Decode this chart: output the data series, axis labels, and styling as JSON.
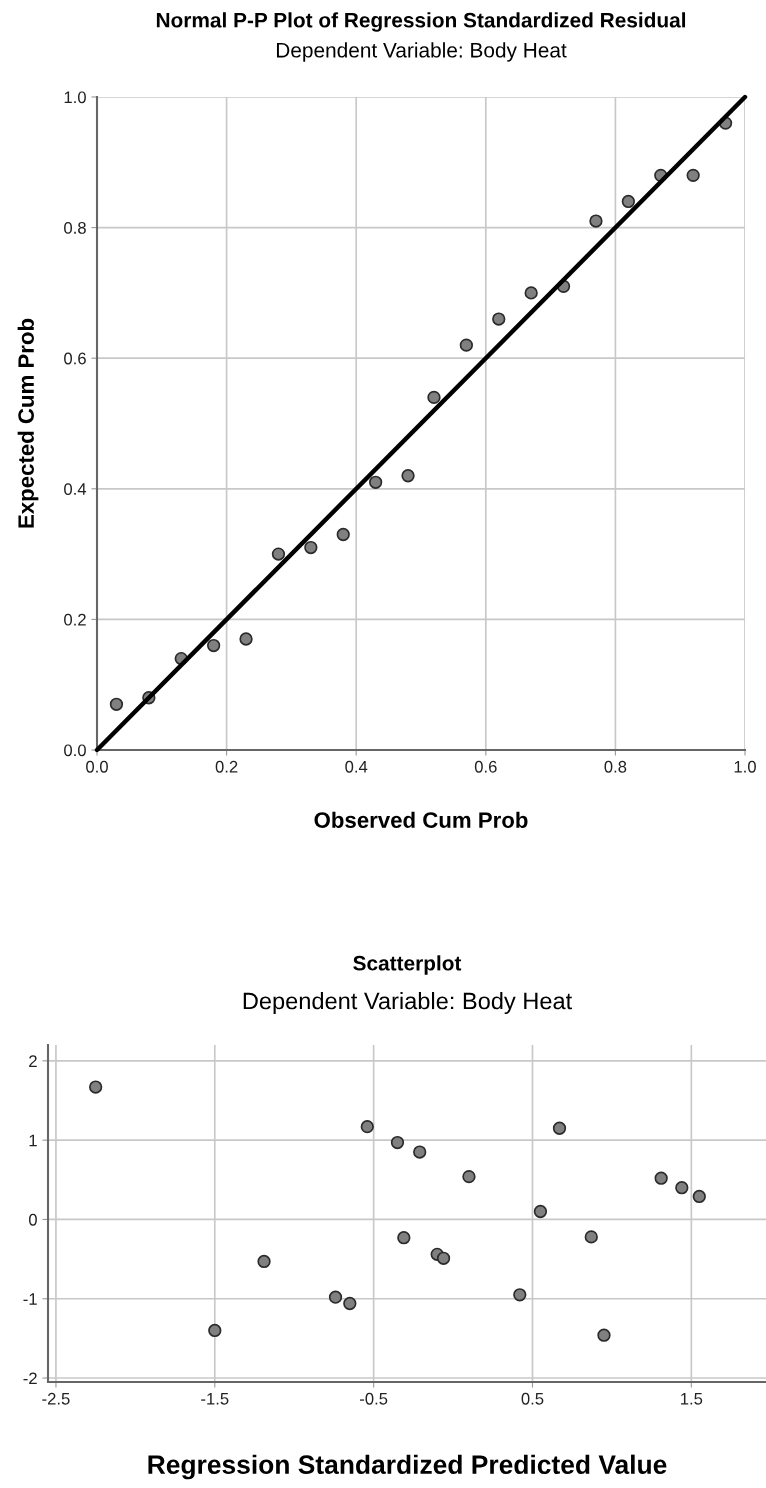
{
  "chart_data": [
    {
      "type": "scatter",
      "title": "Normal P-P Plot of Regression Standardized Residual",
      "subtitle": "Dependent Variable: Body Heat",
      "xlabel": "Observed Cum Prob",
      "ylabel": "Expected Cum Prob",
      "x": [
        0.03,
        0.08,
        0.13,
        0.18,
        0.23,
        0.28,
        0.33,
        0.38,
        0.43,
        0.48,
        0.52,
        0.57,
        0.62,
        0.67,
        0.72,
        0.77,
        0.82,
        0.87,
        0.92,
        0.97
      ],
      "series": [
        {
          "color": "#808080",
          "marker": "circle",
          "values": [
            0.07,
            0.08,
            0.14,
            0.16,
            0.17,
            0.3,
            0.31,
            0.33,
            0.41,
            0.42,
            0.54,
            0.62,
            0.66,
            0.7,
            0.71,
            0.81,
            0.84,
            0.88,
            0.88,
            0.96
          ]
        },
        {
          "type": "line",
          "color": "#000000",
          "x": [
            0,
            1
          ],
          "values": [
            0,
            1
          ]
        }
      ],
      "xlim": [
        0,
        1
      ],
      "ylim": [
        0,
        1
      ],
      "xticks": [
        {
          "value": 0,
          "label": "0.0"
        },
        {
          "value": 0.2,
          "label": "0.2"
        },
        {
          "value": 0.4,
          "label": "0.4"
        },
        {
          "value": 0.6,
          "label": "0.6"
        },
        {
          "value": 0.8,
          "label": "0.8"
        },
        {
          "value": 1,
          "label": "1.0"
        }
      ],
      "yticks": [
        {
          "value": 0,
          "label": "0.0"
        },
        {
          "value": 0.2,
          "label": "0.2"
        },
        {
          "value": 0.4,
          "label": "0.4"
        },
        {
          "value": 0.6,
          "label": "0.6"
        },
        {
          "value": 0.8,
          "label": "0.8"
        },
        {
          "value": 1,
          "label": "1.0"
        }
      ],
      "grid": true
    },
    {
      "type": "scatter",
      "title": "Scatterplot",
      "subtitle": "Dependent Variable: Body Heat",
      "xlabel": "Regression Standardized Predicted Value",
      "x": [
        -2.25,
        -0.54,
        -0.35,
        -1.19,
        -0.74,
        -0.65,
        -1.5,
        -0.21,
        0.1,
        0.67,
        1.31,
        1.44,
        1.55,
        0.55,
        -0.31,
        -0.1,
        -0.06,
        0.87,
        0.42,
        0.95
      ],
      "series": [
        {
          "color": "#808080",
          "values": [
            1.67,
            1.17,
            0.97,
            -0.53,
            -0.98,
            -1.06,
            -1.4,
            0.85,
            0.54,
            1.15,
            0.52,
            0.4,
            0.29,
            0.1,
            -0.23,
            -0.44,
            -0.49,
            -0.22,
            -0.95,
            -1.46
          ]
        }
      ],
      "xlim": [
        -2.55,
        1.97
      ],
      "ylim": [
        -2.05,
        2.2
      ],
      "xticks": [
        -2.5,
        -1.5,
        -0.5,
        0.5,
        1.5
      ],
      "yticks": [
        -2,
        -1,
        0,
        1,
        2
      ],
      "grid": true,
      "marker": "circle"
    }
  ]
}
